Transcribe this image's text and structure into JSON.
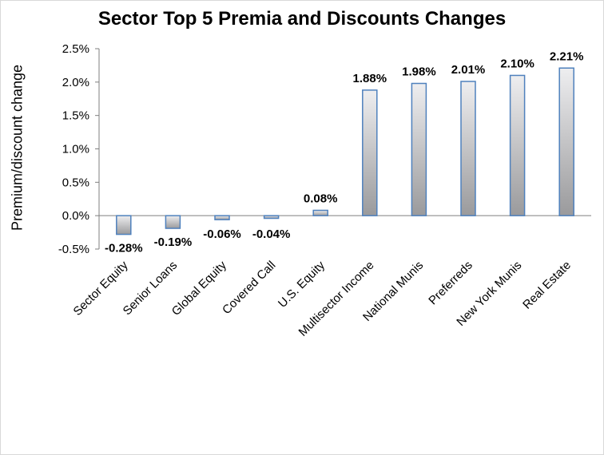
{
  "chart_data": {
    "type": "bar",
    "title": "Sector Top 5 Premia and Discounts Changes",
    "ylabel": "Premium/discount change",
    "xlabel": "",
    "ylim": [
      -0.5,
      2.5
    ],
    "yticks": [
      -0.5,
      0.0,
      0.5,
      1.0,
      1.5,
      2.0,
      2.5
    ],
    "ytick_labels": [
      "-0.5%",
      "0.0%",
      "0.5%",
      "1.0%",
      "1.5%",
      "2.0%",
      "2.5%"
    ],
    "categories": [
      "Sector Equity",
      "Senior Loans",
      "Global Equity",
      "Covered Call",
      "U.S. Equity",
      "Multisector Income",
      "National Munis",
      "Preferreds",
      "New York Munis",
      "Real Estate"
    ],
    "values": [
      -0.28,
      -0.19,
      -0.06,
      -0.04,
      0.08,
      1.88,
      1.98,
      2.01,
      2.1,
      2.21
    ],
    "data_labels": [
      "-0.28%",
      "-0.19%",
      "-0.06%",
      "-0.04%",
      "0.08%",
      "1.88%",
      "1.98%",
      "2.01%",
      "2.10%",
      "2.21%"
    ],
    "grid": false,
    "legend": "none",
    "bar_border_color": "#4f81bd",
    "bar_fill_light": "#eeeef0",
    "bar_fill_dark": "#9a9a9c"
  }
}
